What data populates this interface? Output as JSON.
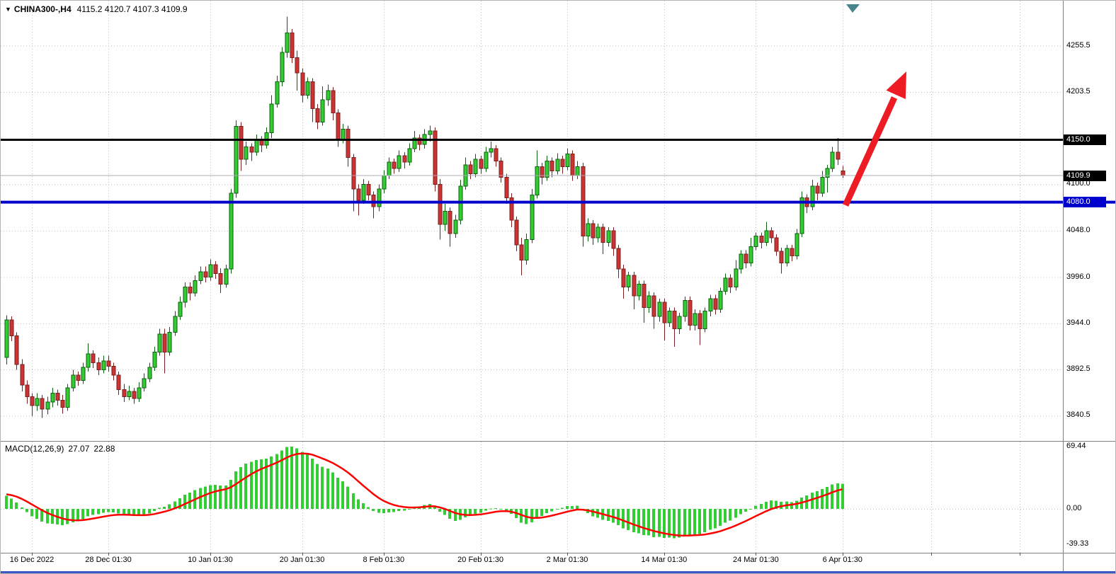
{
  "title": {
    "marker": "▼",
    "symbol_timeframe": "CHINA300-,H4",
    "ohlc": "4115.2 4120.7 4107.3 4109.9"
  },
  "colors": {
    "background": "#FFFFFF",
    "grid": "#B3BCD2",
    "up": "#33CC33",
    "up_border": "#0B5E0B",
    "down": "#CC3333",
    "down_border": "#7A1F1F",
    "macd_bar": "#32CD32",
    "macd_signal": "#FF0000",
    "resistance_line": "#000000",
    "support_line": "#0000CC",
    "bid_line": "#ABABB5",
    "arrow": "#ED1C24",
    "separator": "#808080",
    "axis_text": "#000000",
    "badge_text": "#FFFFFF",
    "bottom_edge": "#3A57C4",
    "shift_marker": "#4A858E"
  },
  "chart_data": {
    "type": "candlestick",
    "symbol": "CHINA300-",
    "timeframe": "H4",
    "last_ohlc": {
      "open": 4115.2,
      "high": 4120.7,
      "low": 4107.3,
      "close": 4109.9
    },
    "price_gridlines": [
      4255.5,
      4203.5,
      4100.0,
      4048.0,
      3996.0,
      3944.0,
      3892.5,
      3840.5
    ],
    "time_labels": [
      {
        "text": "16 Dec 2022",
        "index": 5
      },
      {
        "text": "28 Dec 01:30",
        "index": 20
      },
      {
        "text": "10 Jan 01:30",
        "index": 40
      },
      {
        "text": "20 Jan 01:30",
        "index": 58
      },
      {
        "text": "8 Feb 01:30",
        "index": 74
      },
      {
        "text": "20 Feb 01:30",
        "index": 93
      },
      {
        "text": "2 Mar 01:30",
        "index": 110
      },
      {
        "text": "14 Mar 01:30",
        "index": 129
      },
      {
        "text": "24 Mar 01:30",
        "index": 147
      },
      {
        "text": "6 Apr 01:30",
        "index": 164
      }
    ],
    "levels": {
      "resistance": {
        "label": "4150.0",
        "price": 4150.0
      },
      "support": {
        "label": "4080.0",
        "price": 4080.0
      },
      "bid": {
        "label": "4109.9",
        "price": 4109.9
      }
    },
    "annotation_arrow": {
      "direction": "up",
      "from_price": 4080.0,
      "color": "#ED1C24"
    },
    "macd": {
      "label": "MACD(12,26,9)",
      "fast": 12,
      "slow": 26,
      "signal": 9,
      "main_value": "27.07",
      "signal_value": "22.88",
      "axis_labels": {
        "max": "69.44",
        "zero": "0.00",
        "min": "-39.33"
      }
    },
    "candles": [
      [
        3906,
        3953,
        3898,
        3948
      ],
      [
        3948,
        3952,
        3924,
        3930
      ],
      [
        3930,
        3934,
        3892,
        3898
      ],
      [
        3898,
        3904,
        3868,
        3875
      ],
      [
        3875,
        3880,
        3854,
        3862
      ],
      [
        3862,
        3866,
        3840,
        3852
      ],
      [
        3852,
        3866,
        3846,
        3860
      ],
      [
        3860,
        3864,
        3838,
        3848
      ],
      [
        3848,
        3862,
        3842,
        3856
      ],
      [
        3856,
        3872,
        3850,
        3866
      ],
      [
        3866,
        3870,
        3852,
        3858
      ],
      [
        3858,
        3864,
        3843,
        3850
      ],
      [
        3850,
        3876,
        3846,
        3872
      ],
      [
        3872,
        3892,
        3868,
        3886
      ],
      [
        3886,
        3890,
        3874,
        3880
      ],
      [
        3880,
        3900,
        3876,
        3895
      ],
      [
        3895,
        3922,
        3890,
        3910
      ],
      [
        3910,
        3914,
        3894,
        3900
      ],
      [
        3900,
        3906,
        3886,
        3892
      ],
      [
        3892,
        3908,
        3888,
        3902
      ],
      [
        3902,
        3908,
        3890,
        3896
      ],
      [
        3896,
        3900,
        3880,
        3886
      ],
      [
        3886,
        3890,
        3864,
        3870
      ],
      [
        3870,
        3876,
        3856,
        3862
      ],
      [
        3862,
        3874,
        3858,
        3868
      ],
      [
        3868,
        3872,
        3854,
        3860
      ],
      [
        3860,
        3878,
        3856,
        3872
      ],
      [
        3872,
        3888,
        3868,
        3882
      ],
      [
        3882,
        3900,
        3878,
        3895
      ],
      [
        3895,
        3918,
        3891,
        3912
      ],
      [
        3912,
        3938,
        3908,
        3932
      ],
      [
        3932,
        3938,
        3888,
        3912
      ],
      [
        3912,
        3940,
        3908,
        3934
      ],
      [
        3934,
        3958,
        3930,
        3952
      ],
      [
        3952,
        3974,
        3948,
        3968
      ],
      [
        3968,
        3990,
        3962,
        3985
      ],
      [
        3985,
        3990,
        3970,
        3978
      ],
      [
        3978,
        3998,
        3974,
        3992
      ],
      [
        3992,
        4008,
        3988,
        4002
      ],
      [
        4002,
        4008,
        3990,
        3996
      ],
      [
        3996,
        4016,
        3992,
        4010
      ],
      [
        4010,
        4014,
        3994,
        4000
      ],
      [
        4000,
        4006,
        3978,
        3988
      ],
      [
        3988,
        4010,
        3984,
        4005
      ],
      [
        4005,
        4095,
        4000,
        4090
      ],
      [
        4090,
        4172,
        4085,
        4165
      ],
      [
        4165,
        4170,
        4115,
        4128
      ],
      [
        4128,
        4148,
        4122,
        4142
      ],
      [
        4142,
        4146,
        4126,
        4136
      ],
      [
        4136,
        4156,
        4132,
        4150
      ],
      [
        4150,
        4154,
        4136,
        4144
      ],
      [
        4144,
        4164,
        4140,
        4158
      ],
      [
        4158,
        4200,
        4152,
        4190
      ],
      [
        4190,
        4222,
        4186,
        4215
      ],
      [
        4215,
        4254,
        4210,
        4248
      ],
      [
        4248,
        4288,
        4242,
        4270
      ],
      [
        4270,
        4274,
        4236,
        4242
      ],
      [
        4242,
        4250,
        4205,
        4225
      ],
      [
        4225,
        4230,
        4192,
        4200
      ],
      [
        4200,
        4220,
        4196,
        4215
      ],
      [
        4215,
        4219,
        4170,
        4185
      ],
      [
        4185,
        4190,
        4162,
        4170
      ],
      [
        4170,
        4210,
        4166,
        4195
      ],
      [
        4195,
        4212,
        4188,
        4205
      ],
      [
        4205,
        4209,
        4172,
        4180
      ],
      [
        4180,
        4184,
        4142,
        4150
      ],
      [
        4150,
        4168,
        4146,
        4162
      ],
      [
        4162,
        4166,
        4120,
        4130
      ],
      [
        4130,
        4134,
        4070,
        4095
      ],
      [
        4095,
        4100,
        4065,
        4082
      ],
      [
        4082,
        4106,
        4078,
        4100
      ],
      [
        4100,
        4104,
        4082,
        4088
      ],
      [
        4088,
        4092,
        4062,
        4075
      ],
      [
        4075,
        4100,
        4070,
        4095
      ],
      [
        4095,
        4116,
        4090,
        4110
      ],
      [
        4110,
        4130,
        4106,
        4125
      ],
      [
        4125,
        4129,
        4112,
        4118
      ],
      [
        4118,
        4138,
        4114,
        4132
      ],
      [
        4132,
        4136,
        4118,
        4125
      ],
      [
        4125,
        4146,
        4121,
        4140
      ],
      [
        4140,
        4160,
        4136,
        4152
      ],
      [
        4152,
        4156,
        4138,
        4145
      ],
      [
        4145,
        4162,
        4140,
        4156
      ],
      [
        4156,
        4166,
        4148,
        4160
      ],
      [
        4160,
        4164,
        4092,
        4100
      ],
      [
        4100,
        4106,
        4038,
        4055
      ],
      [
        4055,
        4078,
        4048,
        4070
      ],
      [
        4070,
        4074,
        4030,
        4045
      ],
      [
        4045,
        4066,
        4040,
        4060
      ],
      [
        4060,
        4105,
        4055,
        4098
      ],
      [
        4098,
        4130,
        4094,
        4122
      ],
      [
        4122,
        4126,
        4106,
        4112
      ],
      [
        4112,
        4134,
        4108,
        4128
      ],
      [
        4128,
        4132,
        4112,
        4118
      ],
      [
        4118,
        4142,
        4114,
        4136
      ],
      [
        4136,
        4148,
        4130,
        4140
      ],
      [
        4140,
        4144,
        4120,
        4126
      ],
      [
        4126,
        4130,
        4102,
        4108
      ],
      [
        4108,
        4112,
        4078,
        4085
      ],
      [
        4085,
        4090,
        4052,
        4060
      ],
      [
        4060,
        4064,
        4025,
        4032
      ],
      [
        4032,
        4040,
        3998,
        4015
      ],
      [
        4015,
        4045,
        4010,
        4038
      ],
      [
        4038,
        4095,
        4034,
        4088
      ],
      [
        4088,
        4138,
        4084,
        4120
      ],
      [
        4120,
        4124,
        4100,
        4108
      ],
      [
        4108,
        4132,
        4104,
        4126
      ],
      [
        4126,
        4130,
        4108,
        4115
      ],
      [
        4115,
        4135,
        4111,
        4128
      ],
      [
        4128,
        4132,
        4112,
        4120
      ],
      [
        4120,
        4140,
        4116,
        4134
      ],
      [
        4134,
        4138,
        4104,
        4110
      ],
      [
        4110,
        4126,
        4106,
        4120
      ],
      [
        4120,
        4124,
        4030,
        4042
      ],
      [
        4042,
        4062,
        4036,
        4056
      ],
      [
        4056,
        4060,
        4032,
        4040
      ],
      [
        4040,
        4056,
        4035,
        4052
      ],
      [
        4052,
        4056,
        4022,
        4035
      ],
      [
        4035,
        4052,
        4030,
        4048
      ],
      [
        4048,
        4052,
        4020,
        4028
      ],
      [
        4028,
        4032,
        3995,
        4005
      ],
      [
        4005,
        4010,
        3972,
        3985
      ],
      [
        3985,
        4002,
        3980,
        3998
      ],
      [
        3998,
        4002,
        3960,
        3975
      ],
      [
        3975,
        3992,
        3970,
        3988
      ],
      [
        3988,
        3992,
        3945,
        3962
      ],
      [
        3962,
        3980,
        3956,
        3975
      ],
      [
        3975,
        3979,
        3938,
        3952
      ],
      [
        3952,
        3972,
        3946,
        3968
      ],
      [
        3968,
        3972,
        3925,
        3945
      ],
      [
        3945,
        3962,
        3940,
        3958
      ],
      [
        3958,
        3962,
        3918,
        3938
      ],
      [
        3938,
        3956,
        3932,
        3952
      ],
      [
        3952,
        3974,
        3946,
        3970
      ],
      [
        3970,
        3974,
        3936,
        3942
      ],
      [
        3942,
        3960,
        3936,
        3955
      ],
      [
        3955,
        3959,
        3920,
        3938
      ],
      [
        3938,
        3962,
        3934,
        3958
      ],
      [
        3958,
        3976,
        3952,
        3972
      ],
      [
        3972,
        3976,
        3954,
        3960
      ],
      [
        3960,
        3984,
        3956,
        3980
      ],
      [
        3980,
        4000,
        3976,
        3995
      ],
      [
        3995,
        3999,
        3978,
        3985
      ],
      [
        3985,
        4015,
        3981,
        4005
      ],
      [
        4005,
        4026,
        4000,
        4022
      ],
      [
        4022,
        4026,
        4006,
        4012
      ],
      [
        4012,
        4040,
        4008,
        4030
      ],
      [
        4030,
        4046,
        4026,
        4042
      ],
      [
        4042,
        4046,
        4028,
        4035
      ],
      [
        4035,
        4058,
        4031,
        4048
      ],
      [
        4048,
        4052,
        4034,
        4040
      ],
      [
        4040,
        4044,
        4020,
        4025
      ],
      [
        4025,
        4029,
        4000,
        4012
      ],
      [
        4012,
        4032,
        4008,
        4028
      ],
      [
        4028,
        4032,
        4014,
        4020
      ],
      [
        4020,
        4050,
        4016,
        4045
      ],
      [
        4045,
        4092,
        4041,
        4085
      ],
      [
        4085,
        4089,
        4068,
        4075
      ],
      [
        4075,
        4105,
        4071,
        4098
      ],
      [
        4098,
        4102,
        4082,
        4090
      ],
      [
        4090,
        4115,
        4086,
        4108
      ],
      [
        4108,
        4122,
        4091,
        4118
      ],
      [
        4118,
        4142,
        4114,
        4136
      ],
      [
        4136,
        4152,
        4122,
        4128
      ],
      [
        4115.2,
        4120.7,
        4107.3,
        4109.9
      ]
    ]
  }
}
